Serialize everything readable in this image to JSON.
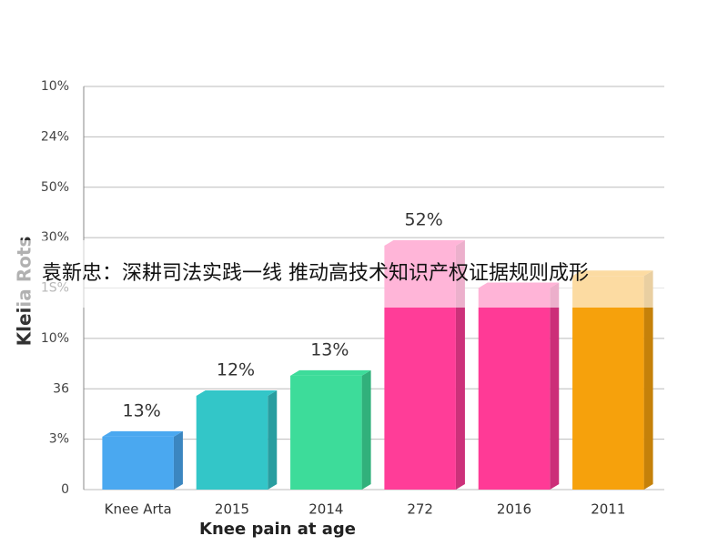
{
  "chart_data": {
    "type": "bar",
    "banner": "袁新忠：深耕司法实践一线 推动高技术知识产权证据规则成形",
    "x_label": "Knee pain at age",
    "y_label": "Kleiia Rots",
    "categories": [
      "Knee Arta",
      "2015",
      "2014",
      "272",
      "2016",
      "2011"
    ],
    "values": [
      1.05,
      1.86,
      2.26,
      4.84,
      4.0,
      4.24
    ],
    "colors": [
      "#4aa8f0",
      "#33c6c8",
      "#3ddc9a",
      "#ff3d98",
      "#ff3a96",
      "#f6a10c"
    ],
    "annotations": [
      "13%",
      "12%",
      "13%",
      "52%"
    ],
    "ylim": [
      0,
      8
    ],
    "yticks": [
      {
        "value": 0,
        "label": "0"
      },
      {
        "value": 1,
        "label": "3%"
      },
      {
        "value": 2,
        "label": "36"
      },
      {
        "value": 3,
        "label": "10%"
      },
      {
        "value": 4,
        "label": "1S%"
      },
      {
        "value": 5,
        "label": "30%"
      },
      {
        "value": 6,
        "label": "50%"
      },
      {
        "value": 7,
        "label": "24%"
      },
      {
        "value": 8,
        "label": "10%"
      }
    ],
    "grid": true
  }
}
